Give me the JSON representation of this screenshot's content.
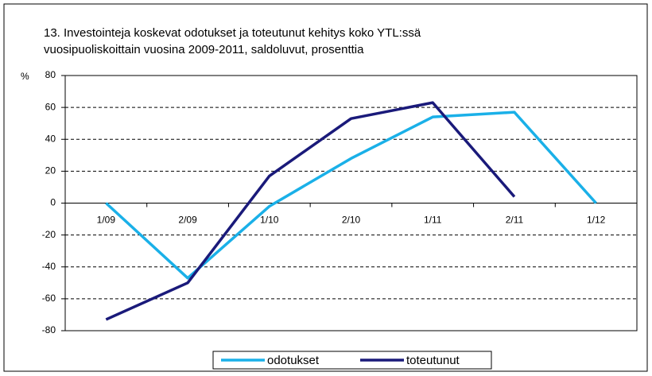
{
  "chart_data": {
    "type": "line",
    "title": "13. Investointeja koskevat odotukset ja toteutunut kehitys koko YTL:ssä",
    "subtitle": "vuosipuoliskoittain vuosina 2009-2011, saldoluvut, prosenttia",
    "y_label": "%",
    "categories": [
      "1/09",
      "2/09",
      "1/10",
      "2/10",
      "1/11",
      "2/11",
      "1/12"
    ],
    "series": [
      {
        "name": "odotukset",
        "color": "#1ab0e8",
        "values": [
          0,
          -47,
          -2,
          28,
          54,
          57,
          0
        ]
      },
      {
        "name": "toteutunut",
        "color": "#1a1a7a",
        "values": [
          -73,
          -50,
          17,
          53,
          63,
          4,
          null
        ]
      }
    ],
    "ylim": [
      -80,
      80
    ],
    "yticks": [
      -80,
      -60,
      -40,
      -20,
      0,
      20,
      40,
      60,
      80
    ],
    "grid": true,
    "legend": "bottom"
  }
}
